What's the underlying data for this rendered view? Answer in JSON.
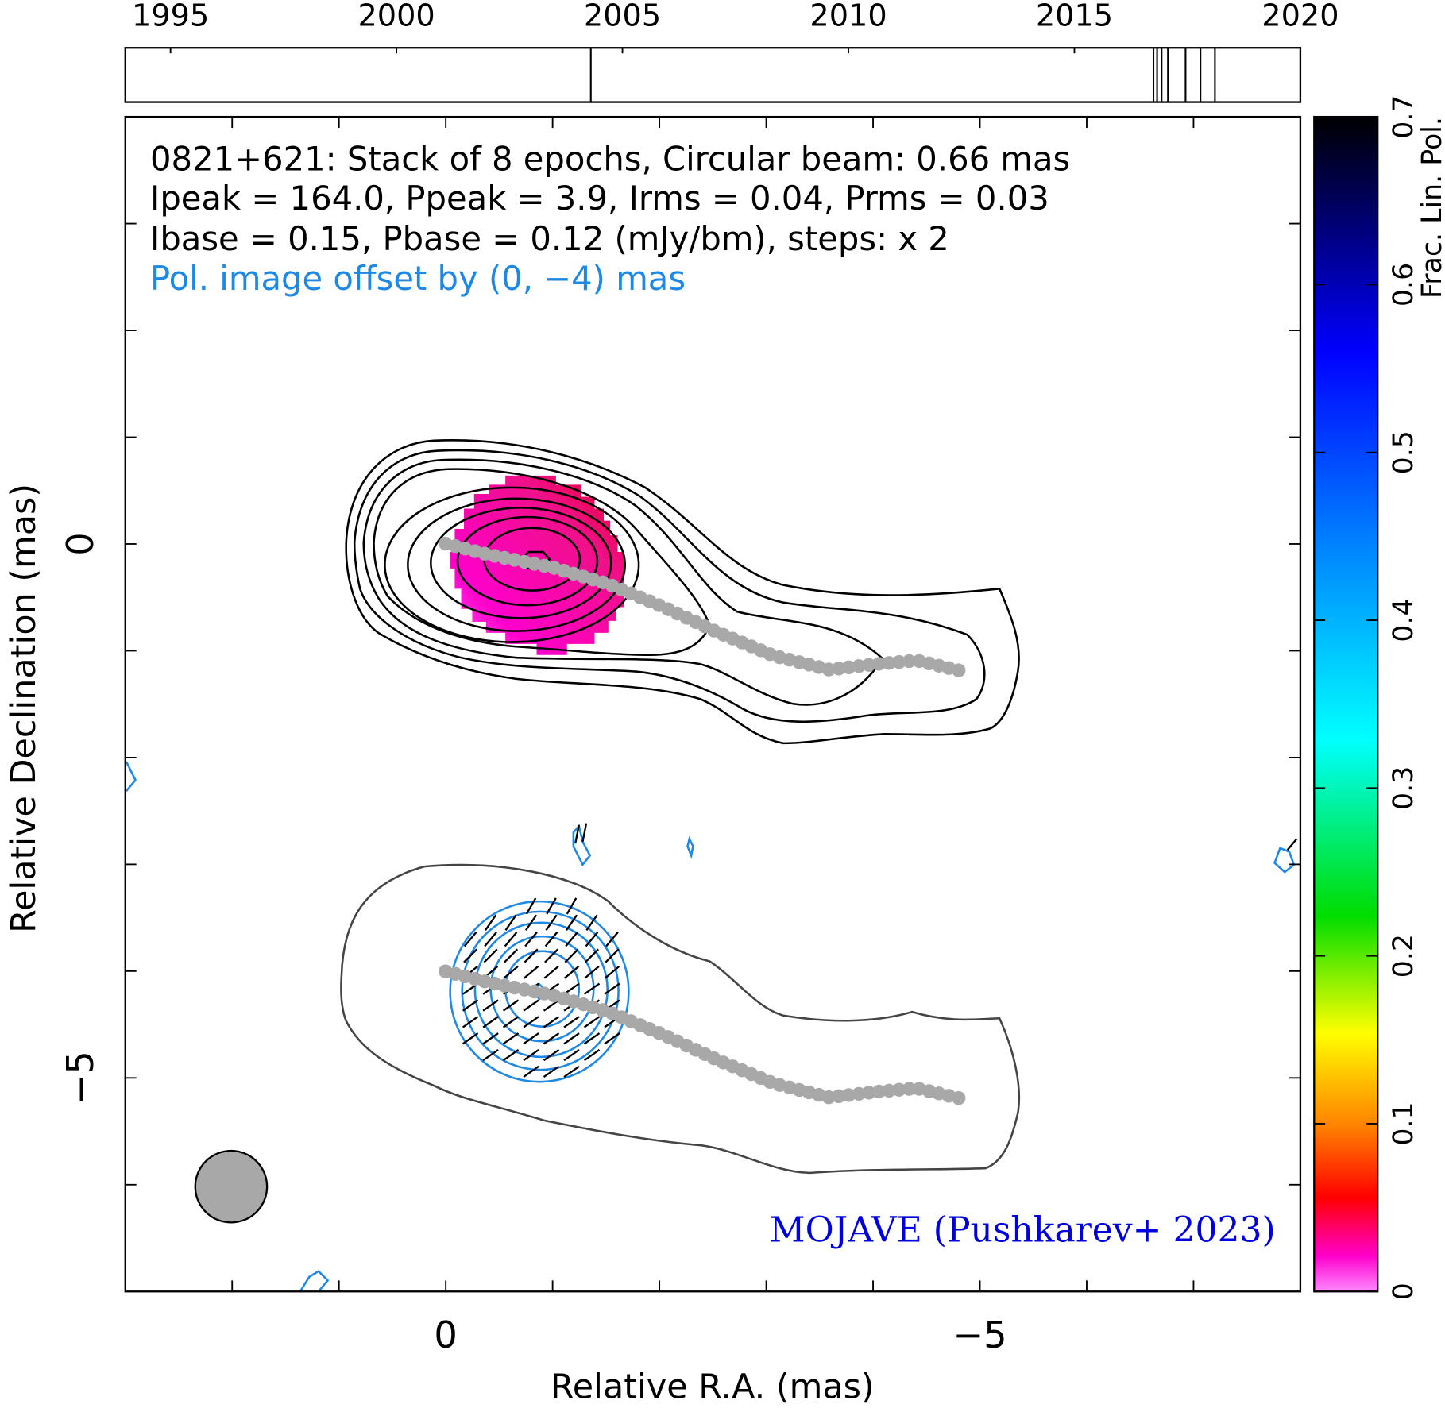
{
  "chart_data": {
    "type": "image",
    "title_lines": [
      "0821+621: Stack of 8 epochs, Circular beam: 0.66 mas",
      "Ipeak = 164.0, Ppeak = 3.9, Irms = 0.04, Prms = 0.03",
      "Ibase = 0.15, Pbase = 0.12 (mJy/bm), steps: x 2",
      "Pol. image offset by (0, −4) mas"
    ],
    "credit": "MOJAVE (Pushkarev+ 2023)",
    "x_label": "Relative R.A. (mas)",
    "y_label": "Relative Declination (mas)",
    "xlim": [
      3,
      -8
    ],
    "ylim": [
      -7,
      4
    ],
    "xticks": [
      0,
      {
        "value": -5,
        "label": "−5"
      }
    ],
    "x_minor_ticks": [
      2,
      1,
      -1,
      -2,
      -3,
      -4,
      -6,
      -7
    ],
    "yticks": [
      0,
      {
        "value": -5,
        "label": "−5"
      }
    ],
    "y_minor_ticks": [
      3,
      2,
      1,
      -1,
      -2,
      -3,
      -4,
      -6
    ],
    "timeline": {
      "xlim": [
        1994,
        2020
      ],
      "xticks": [
        1995,
        2000,
        2005,
        2010,
        2015,
        2020
      ],
      "epochs": [
        2004.3,
        2016.75,
        2016.83,
        2016.93,
        2017.07,
        2017.46,
        2017.79,
        2018.11
      ]
    },
    "colorbar": {
      "label": "Frac. Lin. Pol.",
      "lim": [
        0,
        0.7
      ],
      "ticks": [
        0,
        0.1,
        0.2,
        0.3,
        0.4,
        0.5,
        0.6,
        0.7
      ]
    }
  }
}
